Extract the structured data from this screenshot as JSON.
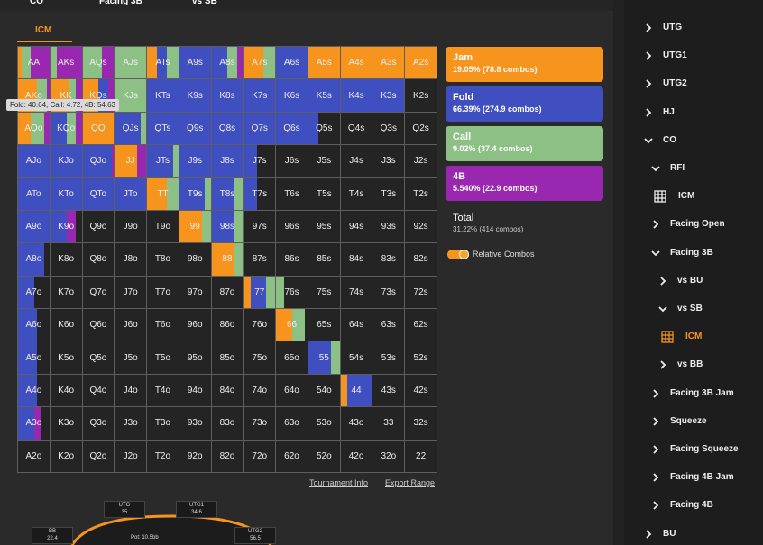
{
  "nav": [
    "CO",
    "Facing 3B",
    "vs SB"
  ],
  "tab": "ICM",
  "tooltip": "Fold: 40.64, Call: 4.72, 4B: 54.63",
  "actions": [
    {
      "name": "Jam",
      "summary": "19.05% (78.8 combos)",
      "color": "#f7941d"
    },
    {
      "name": "Fold",
      "summary": "66.39% (274.9 combos)",
      "color": "#3f4fc0"
    },
    {
      "name": "Call",
      "summary": "9.02% (37.4 combos)",
      "color": "#8cc084"
    },
    {
      "name": "4B",
      "summary": "5.540% (22.9 combos)",
      "color": "#9a27b0"
    }
  ],
  "total": {
    "label": "Total",
    "summary": "31.22% (414 combos)"
  },
  "toggle": {
    "label": "Relative Combos",
    "on": true
  },
  "links": [
    "Tournament Info",
    "Export Range"
  ],
  "grid": {
    "hands": [
      [
        "AA",
        "AKs",
        "AQs",
        "AJs",
        "ATs",
        "A9s",
        "A8s",
        "A7s",
        "A6s",
        "A5s",
        "A4s",
        "A3s",
        "A2s"
      ],
      [
        "AKo",
        "KK",
        "KQs",
        "KJs",
        "KTs",
        "K9s",
        "K8s",
        "K7s",
        "K6s",
        "K5s",
        "K4s",
        "K3s",
        "K2s"
      ],
      [
        "AQo",
        "KQo",
        "QQ",
        "QJs",
        "QTs",
        "Q9s",
        "Q8s",
        "Q7s",
        "Q6s",
        "Q5s",
        "Q4s",
        "Q3s",
        "Q2s"
      ],
      [
        "AJo",
        "KJo",
        "QJo",
        "JJ",
        "JTs",
        "J9s",
        "J8s",
        "J7s",
        "J6s",
        "J5s",
        "J4s",
        "J3s",
        "J2s"
      ],
      [
        "ATo",
        "KTo",
        "QTo",
        "JTo",
        "TT",
        "T9s",
        "T8s",
        "T7s",
        "T6s",
        "T5s",
        "T4s",
        "T3s",
        "T2s"
      ],
      [
        "A9o",
        "K9o",
        "Q9o",
        "J9o",
        "T9o",
        "99",
        "98s",
        "97s",
        "96s",
        "95s",
        "94s",
        "93s",
        "92s"
      ],
      [
        "A8o",
        "K8o",
        "Q8o",
        "J8o",
        "T8o",
        "98o",
        "88",
        "87s",
        "86s",
        "85s",
        "84s",
        "83s",
        "82s"
      ],
      [
        "A7o",
        "K7o",
        "Q7o",
        "J7o",
        "T7o",
        "97o",
        "87o",
        "77",
        "76s",
        "75s",
        "74s",
        "73s",
        "72s"
      ],
      [
        "A6o",
        "K6o",
        "Q6o",
        "J6o",
        "T6o",
        "96o",
        "86o",
        "76o",
        "66",
        "65s",
        "64s",
        "63s",
        "62s"
      ],
      [
        "A5o",
        "K5o",
        "Q5o",
        "J5o",
        "T5o",
        "95o",
        "85o",
        "75o",
        "65o",
        "55",
        "54s",
        "53s",
        "52s"
      ],
      [
        "A4o",
        "K4o",
        "Q4o",
        "J4o",
        "T4o",
        "94o",
        "84o",
        "74o",
        "64o",
        "54o",
        "44",
        "43s",
        "42s"
      ],
      [
        "A3o",
        "K3o",
        "Q3o",
        "J3o",
        "T3o",
        "93o",
        "83o",
        "73o",
        "63o",
        "53o",
        "43o",
        "33",
        "32s"
      ],
      [
        "A2o",
        "K2o",
        "Q2o",
        "J2o",
        "T2o",
        "92o",
        "82o",
        "72o",
        "62o",
        "52o",
        "42o",
        "32o",
        "22"
      ]
    ],
    "mix": [
      [
        [
          10,
          0,
          30,
          60
        ],
        [
          0,
          0,
          20,
          80
        ],
        [
          0,
          0,
          60,
          40
        ],
        [
          0,
          0,
          100,
          0
        ],
        [
          30,
          30,
          40,
          0
        ],
        [
          0,
          100,
          0,
          0
        ],
        [
          0,
          50,
          30,
          20
        ],
        [
          60,
          0,
          40,
          0
        ],
        [
          0,
          100,
          0,
          0
        ],
        [
          100,
          0,
          0,
          0
        ],
        [
          100,
          0,
          0,
          0
        ],
        [
          100,
          0,
          0,
          0
        ],
        [
          100,
          0,
          0,
          0
        ]
      ],
      [
        [
          60,
          0,
          30,
          10
        ],
        [
          60,
          0,
          20,
          20
        ],
        [
          50,
          30,
          0,
          20
        ],
        [
          0,
          0,
          100,
          0
        ],
        [
          0,
          100,
          0,
          0
        ],
        [
          0,
          100,
          0,
          0
        ],
        [
          0,
          100,
          0,
          0
        ],
        [
          0,
          100,
          0,
          0
        ],
        [
          0,
          100,
          0,
          0
        ],
        [
          0,
          100,
          0,
          0
        ],
        [
          0,
          100,
          0,
          0
        ],
        [
          0,
          100,
          0,
          0
        ],
        [
          0,
          0,
          0,
          0
        ]
      ],
      [
        [
          40,
          0,
          40,
          20
        ],
        [
          0,
          50,
          30,
          20
        ],
        [
          100,
          0,
          0,
          0
        ],
        [
          0,
          80,
          20,
          0
        ],
        [
          0,
          100,
          0,
          0
        ],
        [
          0,
          100,
          0,
          0
        ],
        [
          0,
          100,
          0,
          0
        ],
        [
          0,
          100,
          0,
          0
        ],
        [
          0,
          100,
          0,
          0
        ],
        [
          0,
          30,
          0,
          0
        ],
        [
          0,
          0,
          0,
          0
        ],
        [
          0,
          0,
          0,
          0
        ],
        [
          0,
          0,
          0,
          0
        ]
      ],
      [
        [
          0,
          100,
          0,
          0
        ],
        [
          0,
          100,
          0,
          0
        ],
        [
          0,
          90,
          0,
          10
        ],
        [
          70,
          0,
          0,
          30
        ],
        [
          0,
          80,
          20,
          0
        ],
        [
          0,
          100,
          0,
          0
        ],
        [
          0,
          100,
          0,
          0
        ],
        [
          0,
          40,
          0,
          0
        ],
        [
          0,
          0,
          0,
          0
        ],
        [
          0,
          0,
          0,
          0
        ],
        [
          0,
          0,
          0,
          0
        ],
        [
          0,
          0,
          0,
          0
        ],
        [
          0,
          0,
          0,
          0
        ]
      ],
      [
        [
          0,
          100,
          0,
          0
        ],
        [
          0,
          100,
          0,
          0
        ],
        [
          0,
          100,
          0,
          0
        ],
        [
          0,
          100,
          0,
          0
        ],
        [
          60,
          0,
          40,
          0
        ],
        [
          0,
          80,
          20,
          0
        ],
        [
          0,
          70,
          30,
          0
        ],
        [
          0,
          40,
          0,
          0
        ],
        [
          0,
          0,
          0,
          0
        ],
        [
          0,
          0,
          0,
          0
        ],
        [
          0,
          0,
          0,
          0
        ],
        [
          0,
          0,
          0,
          0
        ],
        [
          0,
          0,
          0,
          0
        ]
      ],
      [
        [
          0,
          100,
          0,
          0
        ],
        [
          0,
          50,
          0,
          30
        ],
        [
          0,
          0,
          0,
          0
        ],
        [
          0,
          0,
          0,
          0
        ],
        [
          0,
          0,
          0,
          0
        ],
        [
          70,
          0,
          30,
          0
        ],
        [
          0,
          70,
          30,
          0
        ],
        [
          0,
          0,
          0,
          0
        ],
        [
          0,
          0,
          0,
          0
        ],
        [
          0,
          0,
          0,
          0
        ],
        [
          0,
          0,
          0,
          0
        ],
        [
          0,
          0,
          0,
          0
        ],
        [
          0,
          0,
          0,
          0
        ]
      ],
      [
        [
          0,
          80,
          0,
          0
        ],
        [
          0,
          0,
          0,
          0
        ],
        [
          0,
          0,
          0,
          0
        ],
        [
          0,
          0,
          0,
          0
        ],
        [
          0,
          0,
          0,
          0
        ],
        [
          0,
          0,
          0,
          0
        ],
        [
          70,
          0,
          30,
          0
        ],
        [
          0,
          0,
          0,
          0
        ],
        [
          0,
          0,
          0,
          0
        ],
        [
          0,
          0,
          0,
          0
        ],
        [
          0,
          0,
          0,
          0
        ],
        [
          0,
          0,
          0,
          0
        ],
        [
          0,
          0,
          0,
          0
        ]
      ],
      [
        [
          0,
          50,
          0,
          0
        ],
        [
          0,
          0,
          0,
          0
        ],
        [
          0,
          0,
          0,
          0
        ],
        [
          0,
          0,
          0,
          0
        ],
        [
          0,
          0,
          0,
          0
        ],
        [
          0,
          0,
          0,
          0
        ],
        [
          0,
          0,
          0,
          0
        ],
        [
          20,
          50,
          30,
          0
        ],
        [
          0,
          0,
          25,
          0
        ],
        [
          0,
          0,
          0,
          0
        ],
        [
          0,
          0,
          0,
          0
        ],
        [
          0,
          0,
          0,
          0
        ],
        [
          0,
          0,
          0,
          0
        ]
      ],
      [
        [
          0,
          60,
          0,
          0
        ],
        [
          0,
          0,
          0,
          0
        ],
        [
          0,
          0,
          0,
          0
        ],
        [
          0,
          0,
          0,
          0
        ],
        [
          0,
          0,
          0,
          0
        ],
        [
          0,
          0,
          0,
          0
        ],
        [
          0,
          0,
          0,
          0
        ],
        [
          0,
          0,
          0,
          0
        ],
        [
          50,
          0,
          40,
          0
        ],
        [
          0,
          0,
          0,
          0
        ],
        [
          0,
          0,
          0,
          0
        ],
        [
          0,
          0,
          0,
          0
        ],
        [
          0,
          0,
          0,
          0
        ]
      ],
      [
        [
          0,
          60,
          0,
          0
        ],
        [
          0,
          0,
          0,
          0
        ],
        [
          0,
          0,
          0,
          0
        ],
        [
          0,
          0,
          0,
          0
        ],
        [
          0,
          0,
          0,
          0
        ],
        [
          0,
          0,
          0,
          0
        ],
        [
          0,
          0,
          0,
          0
        ],
        [
          0,
          0,
          0,
          0
        ],
        [
          0,
          0,
          0,
          0
        ],
        [
          0,
          70,
          30,
          0
        ],
        [
          0,
          0,
          0,
          0
        ],
        [
          0,
          0,
          0,
          0
        ],
        [
          0,
          0,
          0,
          0
        ]
      ],
      [
        [
          0,
          60,
          0,
          0
        ],
        [
          0,
          0,
          0,
          0
        ],
        [
          0,
          0,
          0,
          0
        ],
        [
          0,
          0,
          0,
          0
        ],
        [
          0,
          0,
          0,
          0
        ],
        [
          0,
          0,
          0,
          0
        ],
        [
          0,
          0,
          0,
          0
        ],
        [
          0,
          0,
          0,
          0
        ],
        [
          0,
          0,
          0,
          0
        ],
        [
          0,
          0,
          0,
          0
        ],
        [
          20,
          80,
          0,
          0
        ],
        [
          0,
          0,
          0,
          0
        ],
        [
          0,
          0,
          0,
          0
        ]
      ],
      [
        [
          0,
          50,
          0,
          20
        ],
        [
          0,
          0,
          0,
          0
        ],
        [
          0,
          0,
          0,
          0
        ],
        [
          0,
          0,
          0,
          0
        ],
        [
          0,
          0,
          0,
          0
        ],
        [
          0,
          0,
          0,
          0
        ],
        [
          0,
          0,
          0,
          0
        ],
        [
          0,
          0,
          0,
          0
        ],
        [
          0,
          0,
          0,
          0
        ],
        [
          0,
          0,
          0,
          0
        ],
        [
          0,
          0,
          0,
          0
        ],
        [
          0,
          0,
          0,
          0
        ],
        [
          0,
          0,
          0,
          0
        ]
      ],
      [
        [
          0,
          0,
          0,
          0
        ],
        [
          0,
          0,
          0,
          0
        ],
        [
          0,
          0,
          0,
          0
        ],
        [
          0,
          0,
          0,
          0
        ],
        [
          0,
          0,
          0,
          0
        ],
        [
          0,
          0,
          0,
          0
        ],
        [
          0,
          0,
          0,
          0
        ],
        [
          0,
          0,
          0,
          0
        ],
        [
          0,
          0,
          0,
          0
        ],
        [
          0,
          0,
          0,
          0
        ],
        [
          0,
          0,
          0,
          0
        ],
        [
          0,
          0,
          0,
          0
        ],
        [
          0,
          0,
          0,
          0
        ]
      ]
    ]
  },
  "table": {
    "seats": [
      {
        "name": "UTG",
        "stack": "35"
      },
      {
        "name": "UTG1",
        "stack": "34.6"
      },
      {
        "name": "BB",
        "stack": "22.4"
      },
      {
        "name": "UTG2",
        "stack": "56.5"
      }
    ],
    "pot": "Pot: 10.5bb"
  },
  "tree": [
    {
      "label": "UTG",
      "level": 0,
      "state": "collapsed"
    },
    {
      "label": "UTG1",
      "level": 0,
      "state": "collapsed"
    },
    {
      "label": "UTG2",
      "level": 0,
      "state": "collapsed"
    },
    {
      "label": "HJ",
      "level": 0,
      "state": "collapsed"
    },
    {
      "label": "CO",
      "level": 0,
      "state": "expanded"
    },
    {
      "label": "RFI",
      "level": 1,
      "state": "expanded"
    },
    {
      "label": "ICM",
      "level": 2,
      "state": "leaf"
    },
    {
      "label": "Facing Open",
      "level": 1,
      "state": "collapsed"
    },
    {
      "label": "Facing 3B",
      "level": 1,
      "state": "expanded"
    },
    {
      "label": "vs BU",
      "level": 2,
      "state": "collapsed"
    },
    {
      "label": "vs SB",
      "level": 2,
      "state": "expanded"
    },
    {
      "label": "ICM",
      "level": 3,
      "state": "selected"
    },
    {
      "label": "vs BB",
      "level": 2,
      "state": "collapsed"
    },
    {
      "label": "Facing 3B Jam",
      "level": 1,
      "state": "collapsed"
    },
    {
      "label": "Squeeze",
      "level": 1,
      "state": "collapsed"
    },
    {
      "label": "Facing Squeeze",
      "level": 1,
      "state": "collapsed"
    },
    {
      "label": "Facing 4B Jam",
      "level": 1,
      "state": "collapsed"
    },
    {
      "label": "Facing 4B",
      "level": 1,
      "state": "collapsed"
    },
    {
      "label": "BU",
      "level": 0,
      "state": "collapsed"
    }
  ]
}
